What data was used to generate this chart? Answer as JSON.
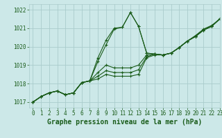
{
  "title": "Graphe pression niveau de la mer (hPa)",
  "background_color": "#cce8e8",
  "grid_color": "#aacccc",
  "line_color": "#1a5c1a",
  "xlim": [
    -0.5,
    23
  ],
  "ylim": [
    1016.7,
    1022.3
  ],
  "yticks": [
    1017,
    1018,
    1019,
    1020,
    1021,
    1022
  ],
  "xticks": [
    0,
    1,
    2,
    3,
    4,
    5,
    6,
    7,
    8,
    9,
    10,
    11,
    12,
    13,
    14,
    15,
    16,
    17,
    18,
    19,
    20,
    21,
    22,
    23
  ],
  "series": [
    [
      1017.0,
      1017.3,
      1017.5,
      1017.6,
      1017.4,
      1017.5,
      1018.05,
      1018.15,
      1019.4,
      1020.35,
      1021.0,
      1021.05,
      1021.85,
      1021.1,
      1019.65,
      1019.6,
      1019.55,
      1019.65,
      1019.95,
      1020.3,
      1020.6,
      1020.95,
      1021.15,
      1021.5
    ],
    [
      1017.0,
      1017.3,
      1017.5,
      1017.6,
      1017.4,
      1017.5,
      1018.05,
      1018.15,
      1019.2,
      1020.1,
      1020.95,
      1021.05,
      1021.85,
      1021.1,
      1019.65,
      1019.6,
      1019.55,
      1019.65,
      1019.95,
      1020.3,
      1020.55,
      1020.9,
      1021.1,
      1021.5
    ],
    [
      1017.0,
      1017.3,
      1017.5,
      1017.6,
      1017.4,
      1017.5,
      1018.05,
      1018.15,
      1018.6,
      1019.0,
      1018.85,
      1018.85,
      1018.85,
      1019.0,
      1019.55,
      1019.6,
      1019.55,
      1019.65,
      1019.95,
      1020.3,
      1020.55,
      1020.9,
      1021.1,
      1021.5
    ],
    [
      1017.0,
      1017.3,
      1017.5,
      1017.6,
      1017.4,
      1017.5,
      1018.05,
      1018.15,
      1018.4,
      1018.7,
      1018.6,
      1018.6,
      1018.6,
      1018.75,
      1019.45,
      1019.6,
      1019.55,
      1019.65,
      1019.95,
      1020.3,
      1020.55,
      1020.9,
      1021.1,
      1021.5
    ],
    [
      1017.0,
      1017.3,
      1017.5,
      1017.6,
      1017.4,
      1017.5,
      1018.05,
      1018.15,
      1018.25,
      1018.5,
      1018.4,
      1018.4,
      1018.4,
      1018.5,
      1019.4,
      1019.55,
      1019.55,
      1019.65,
      1019.95,
      1020.3,
      1020.55,
      1020.9,
      1021.1,
      1021.5
    ]
  ],
  "marker": "+",
  "linewidth": 0.8,
  "markersize": 3.5,
  "markeredgewidth": 0.8,
  "tick_fontsize": 5.5,
  "label_fontsize": 7.0,
  "font_color": "#1a5c1a"
}
